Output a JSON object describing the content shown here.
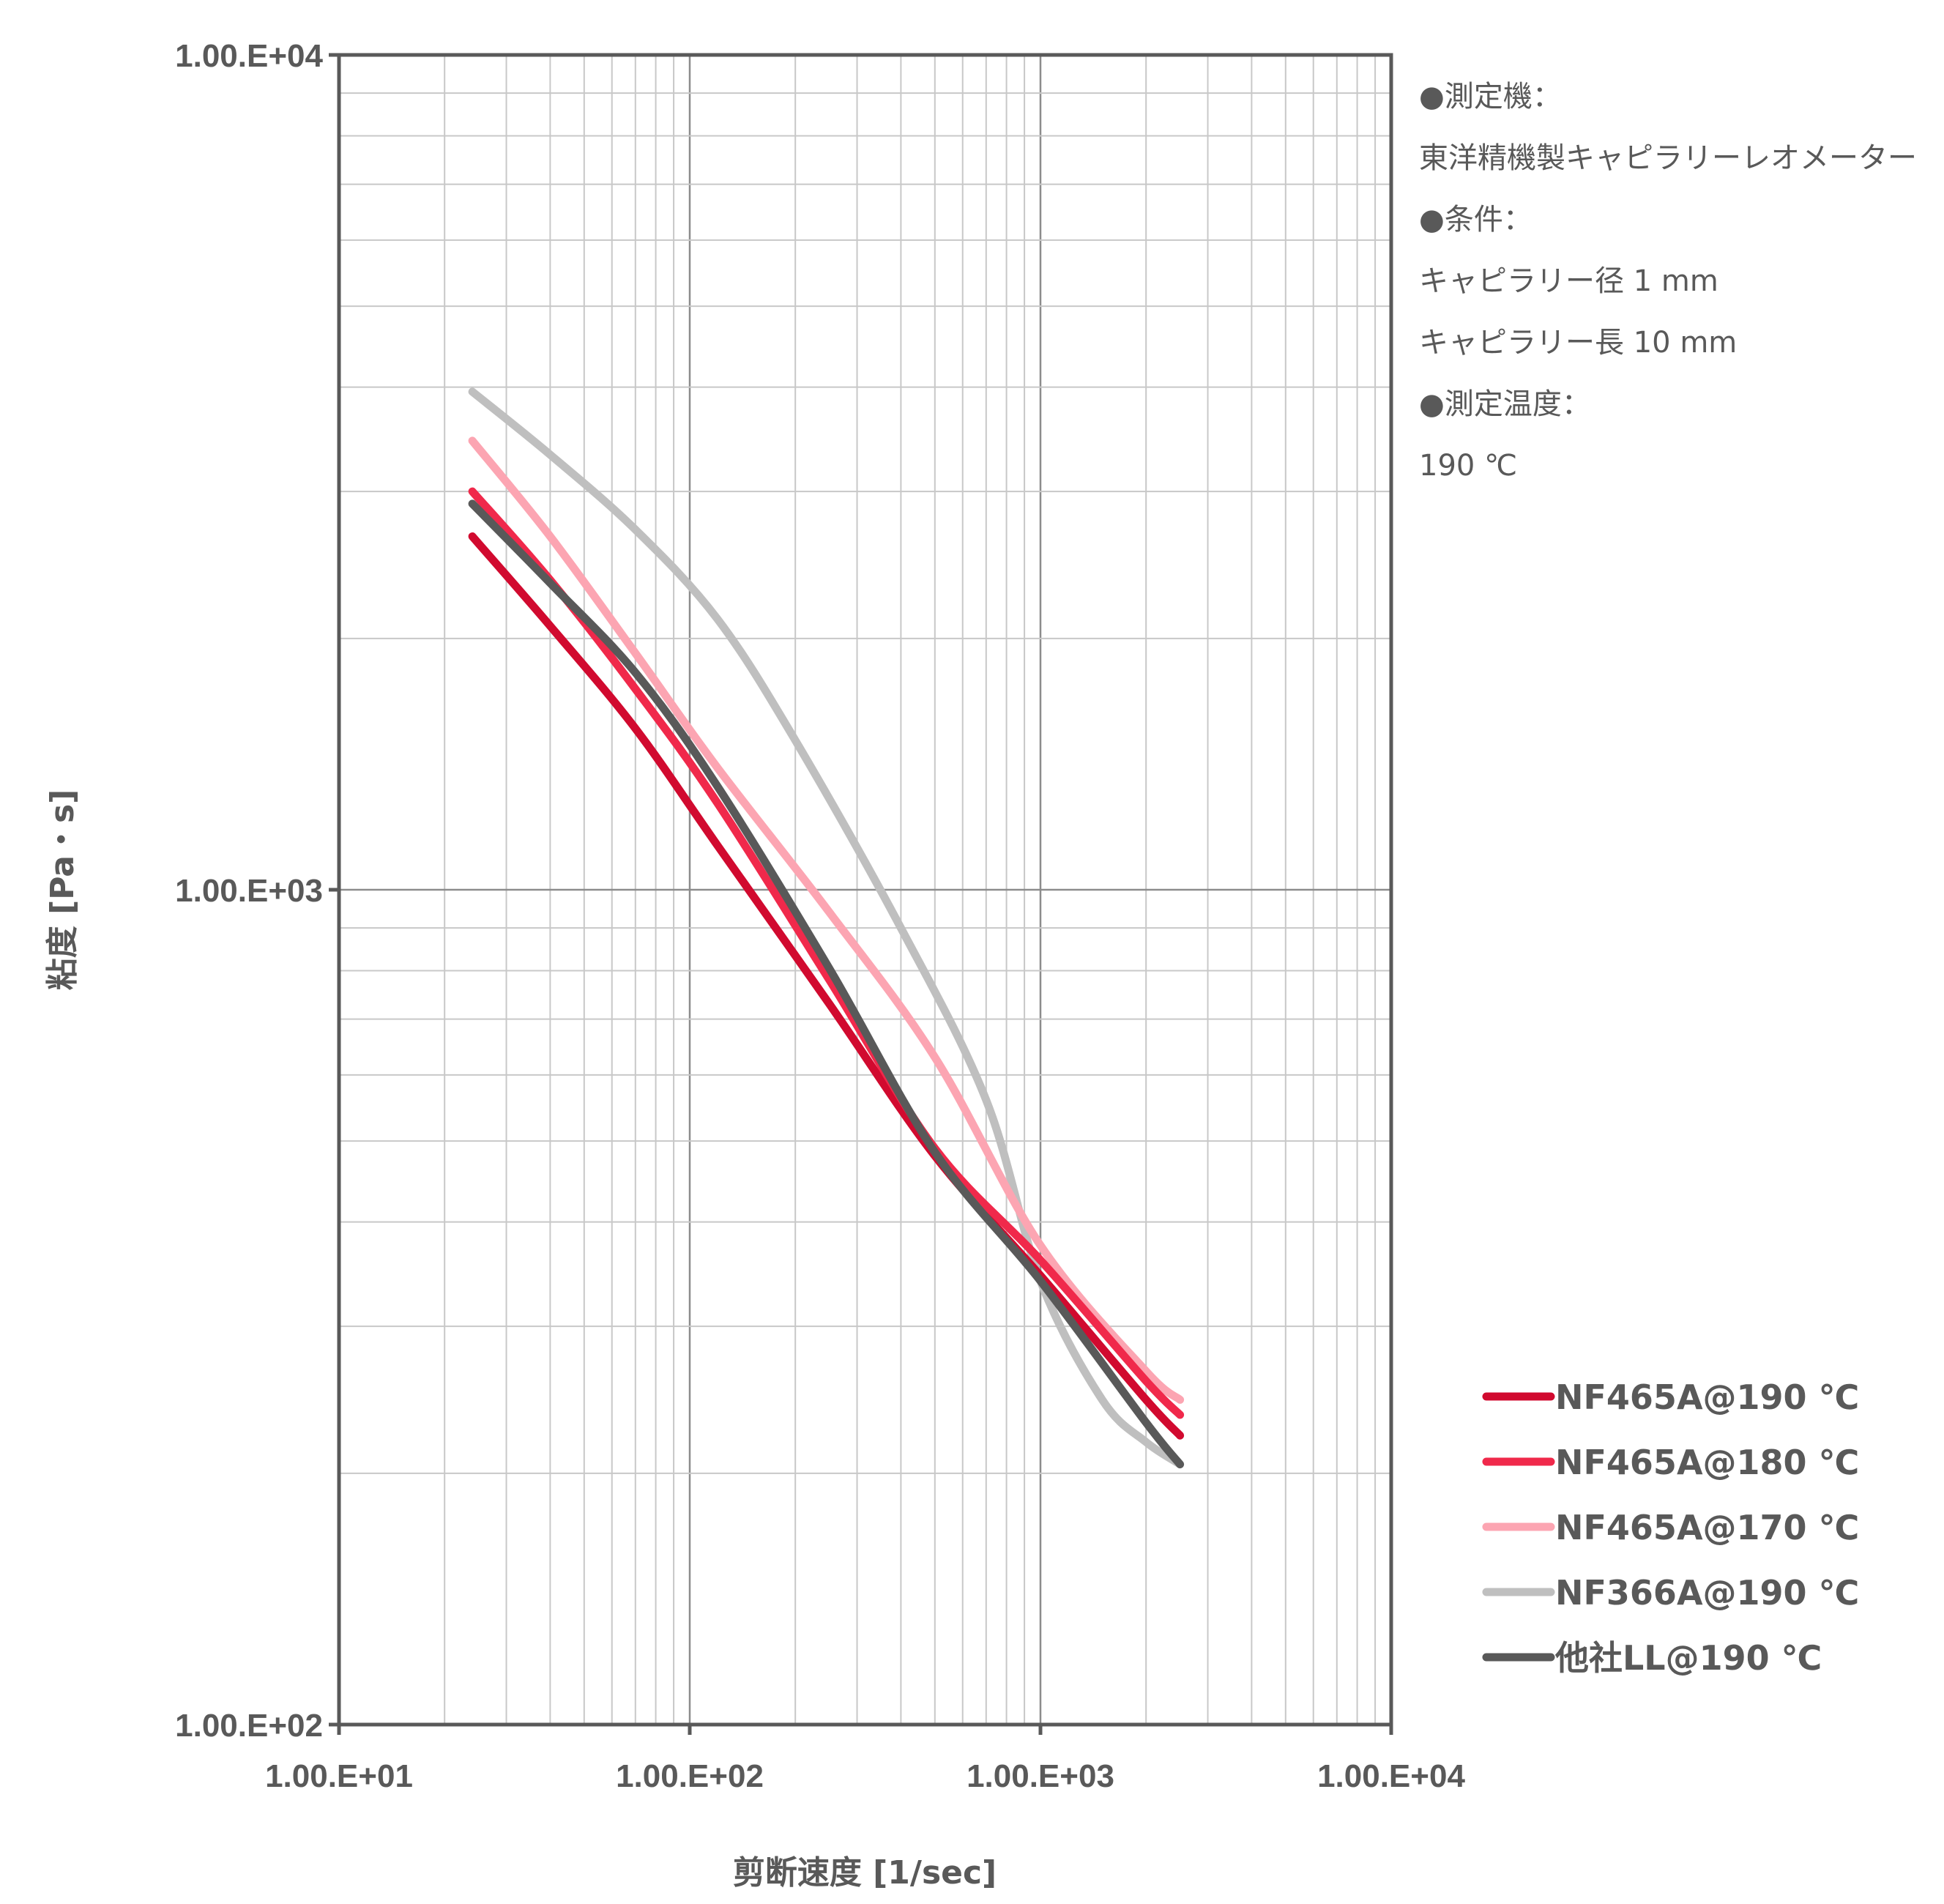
{
  "chart_data": {
    "type": "line",
    "title": "",
    "xlabel": "剪断速度 [1/sec]",
    "ylabel": "粘度 [Pa・s]",
    "xscale": "log",
    "yscale": "log",
    "xlim": [
      10,
      10000
    ],
    "ylim": [
      100,
      10000
    ],
    "grid": true,
    "x_ticks": [
      "1.00.E+01",
      "1.00.E+02",
      "1.00.E+03",
      "1.00.E+04"
    ],
    "y_ticks": [
      "1.00.E+02",
      "1.00.E+03",
      "1.00.E+04"
    ],
    "legend_position": "bottom-right",
    "series": [
      {
        "name": "NF465A@190 ℃",
        "color": "#d10a2f",
        "x": [
          24,
          40,
          70,
          120,
          250,
          500,
          1000,
          2000,
          2500
        ],
        "y": [
          2650,
          2070,
          1560,
          1130,
          730,
          480,
          345,
          245,
          222
        ]
      },
      {
        "name": "NF465A@180 ℃",
        "color": "#f0294b",
        "x": [
          24,
          40,
          70,
          120,
          250,
          500,
          1000,
          2000,
          2500
        ],
        "y": [
          3000,
          2350,
          1740,
          1270,
          780,
          490,
          360,
          258,
          235
        ]
      },
      {
        "name": "NF465A@170 ℃",
        "color": "#fca5b2",
        "x": [
          24,
          40,
          70,
          120,
          250,
          500,
          1000,
          2000,
          2500
        ],
        "y": [
          3450,
          2650,
          1920,
          1400,
          940,
          630,
          375,
          265,
          245
        ]
      },
      {
        "name": "NF366A@190 ℃",
        "color": "#bfbfbf",
        "x": [
          24,
          40,
          70,
          120,
          200,
          400,
          700,
          1000,
          1500,
          2000,
          2500
        ],
        "y": [
          3950,
          3320,
          2700,
          2110,
          1510,
          900,
          560,
          340,
          245,
          218,
          205
        ]
      },
      {
        "name": "他社LL@190 ℃",
        "color": "#595959",
        "x": [
          24,
          40,
          70,
          120,
          250,
          500,
          1000,
          2000,
          2500
        ],
        "y": [
          2900,
          2330,
          1820,
          1330,
          805,
          485,
          340,
          230,
          205
        ]
      }
    ]
  },
  "notes": [
    "●測定機：",
    "東洋精機製キャピラリーレオメーター",
    "●条件：",
    "キャピラリー径 1 mm",
    "キャピラリー長 10 mm",
    "●測定温度：",
    "190 ℃"
  ]
}
